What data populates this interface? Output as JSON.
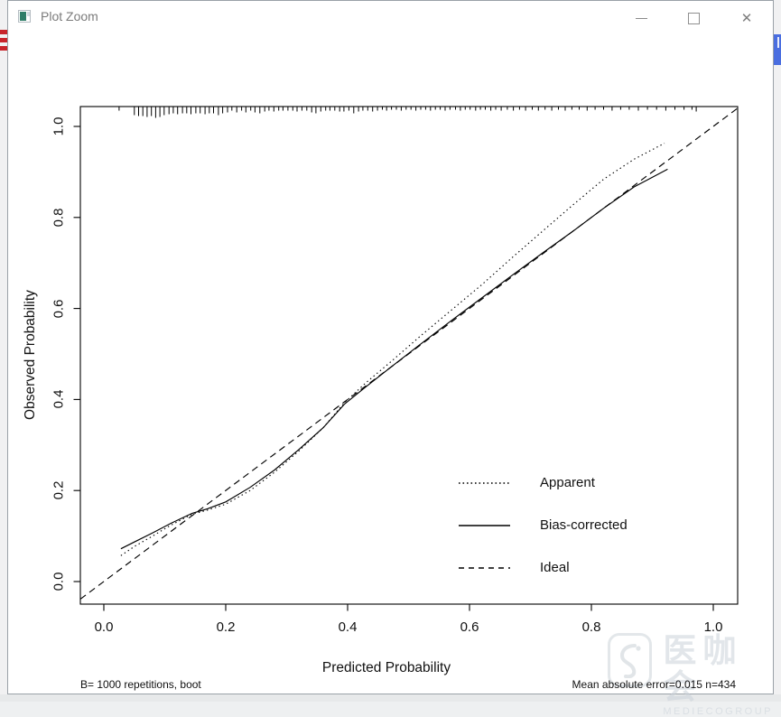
{
  "window": {
    "title": "Plot Zoom",
    "controls": [
      {
        "name": "minimize"
      },
      {
        "name": "maximize"
      },
      {
        "name": "close",
        "glyph": "✕"
      }
    ]
  },
  "chart_data": {
    "type": "line",
    "title": "",
    "xlabel": "Predicted Probability",
    "ylabel": "Observed Probability",
    "x_ticks": [
      "0.0",
      "0.2",
      "0.4",
      "0.6",
      "0.8",
      "1.0"
    ],
    "y_ticks": [
      "0.0",
      "0.2",
      "0.4",
      "0.6",
      "0.8",
      "1.0"
    ],
    "xlim": [
      -0.04,
      1.04
    ],
    "ylim": [
      -0.05,
      1.045
    ],
    "grid": false,
    "legend_position": "center-right",
    "series": [
      {
        "name": "Apparent",
        "style": "dotted",
        "points": [
          [
            0.028,
            0.057
          ],
          [
            0.05,
            0.077
          ],
          [
            0.08,
            0.1
          ],
          [
            0.11,
            0.124
          ],
          [
            0.145,
            0.148
          ],
          [
            0.17,
            0.157
          ],
          [
            0.2,
            0.17
          ],
          [
            0.24,
            0.2
          ],
          [
            0.28,
            0.24
          ],
          [
            0.32,
            0.287
          ],
          [
            0.36,
            0.338
          ],
          [
            0.395,
            0.393
          ],
          [
            0.43,
            0.437
          ],
          [
            0.47,
            0.482
          ],
          [
            0.52,
            0.54
          ],
          [
            0.57,
            0.596
          ],
          [
            0.62,
            0.652
          ],
          [
            0.67,
            0.712
          ],
          [
            0.72,
            0.77
          ],
          [
            0.77,
            0.828
          ],
          [
            0.82,
            0.884
          ],
          [
            0.87,
            0.928
          ],
          [
            0.92,
            0.963
          ]
        ]
      },
      {
        "name": "Bias-corrected",
        "style": "solid",
        "points": [
          [
            0.028,
            0.072
          ],
          [
            0.05,
            0.087
          ],
          [
            0.08,
            0.107
          ],
          [
            0.11,
            0.128
          ],
          [
            0.145,
            0.15
          ],
          [
            0.17,
            0.16
          ],
          [
            0.2,
            0.175
          ],
          [
            0.24,
            0.207
          ],
          [
            0.28,
            0.245
          ],
          [
            0.32,
            0.29
          ],
          [
            0.36,
            0.338
          ],
          [
            0.395,
            0.39
          ],
          [
            0.43,
            0.428
          ],
          [
            0.47,
            0.47
          ],
          [
            0.52,
            0.522
          ],
          [
            0.57,
            0.573
          ],
          [
            0.62,
            0.623
          ],
          [
            0.67,
            0.673
          ],
          [
            0.72,
            0.722
          ],
          [
            0.77,
            0.77
          ],
          [
            0.82,
            0.82
          ],
          [
            0.87,
            0.867
          ],
          [
            0.925,
            0.906
          ]
        ]
      },
      {
        "name": "Ideal",
        "style": "dashed",
        "points": [
          [
            -0.0385,
            -0.0385
          ],
          [
            1.04,
            1.04
          ]
        ]
      }
    ],
    "rug": [
      [
        0.025,
        4
      ],
      [
        0.05,
        9
      ],
      [
        0.057,
        10
      ],
      [
        0.064,
        10
      ],
      [
        0.071,
        11
      ],
      [
        0.078,
        10
      ],
      [
        0.085,
        12
      ],
      [
        0.092,
        11
      ],
      [
        0.099,
        9
      ],
      [
        0.107,
        8
      ],
      [
        0.114,
        7
      ],
      [
        0.121,
        8
      ],
      [
        0.129,
        7
      ],
      [
        0.136,
        7
      ],
      [
        0.143,
        8
      ],
      [
        0.151,
        7
      ],
      [
        0.158,
        7
      ],
      [
        0.166,
        8
      ],
      [
        0.173,
        7
      ],
      [
        0.18,
        7
      ],
      [
        0.188,
        9
      ],
      [
        0.195,
        7
      ],
      [
        0.203,
        6
      ],
      [
        0.21,
        4
      ],
      [
        0.218,
        6
      ],
      [
        0.226,
        4
      ],
      [
        0.233,
        6
      ],
      [
        0.241,
        4
      ],
      [
        0.248,
        6
      ],
      [
        0.256,
        7
      ],
      [
        0.264,
        5
      ],
      [
        0.271,
        4
      ],
      [
        0.279,
        5
      ],
      [
        0.287,
        4
      ],
      [
        0.294,
        4
      ],
      [
        0.302,
        4
      ],
      [
        0.31,
        4
      ],
      [
        0.317,
        5
      ],
      [
        0.325,
        4
      ],
      [
        0.333,
        4
      ],
      [
        0.341,
        6
      ],
      [
        0.348,
        7
      ],
      [
        0.356,
        5
      ],
      [
        0.364,
        4
      ],
      [
        0.371,
        4
      ],
      [
        0.379,
        4
      ],
      [
        0.387,
        5
      ],
      [
        0.394,
        5
      ],
      [
        0.402,
        4
      ],
      [
        0.41,
        7
      ],
      [
        0.418,
        5
      ],
      [
        0.425,
        4
      ],
      [
        0.433,
        4
      ],
      [
        0.441,
        5
      ],
      [
        0.449,
        4
      ],
      [
        0.457,
        3
      ],
      [
        0.464,
        4
      ],
      [
        0.472,
        3
      ],
      [
        0.48,
        3
      ],
      [
        0.488,
        4
      ],
      [
        0.496,
        3
      ],
      [
        0.504,
        3
      ],
      [
        0.512,
        4
      ],
      [
        0.52,
        3
      ],
      [
        0.528,
        3
      ],
      [
        0.536,
        4
      ],
      [
        0.544,
        3
      ],
      [
        0.552,
        3
      ],
      [
        0.56,
        4
      ],
      [
        0.568,
        3
      ],
      [
        0.577,
        3
      ],
      [
        0.585,
        4
      ],
      [
        0.593,
        3
      ],
      [
        0.601,
        3
      ],
      [
        0.61,
        4
      ],
      [
        0.618,
        3
      ],
      [
        0.626,
        3
      ],
      [
        0.635,
        4
      ],
      [
        0.643,
        3
      ],
      [
        0.652,
        4
      ],
      [
        0.662,
        3
      ],
      [
        0.672,
        4
      ],
      [
        0.682,
        3
      ],
      [
        0.692,
        4
      ],
      [
        0.703,
        3
      ],
      [
        0.713,
        4
      ],
      [
        0.724,
        3
      ],
      [
        0.735,
        4
      ],
      [
        0.746,
        3
      ],
      [
        0.757,
        4
      ],
      [
        0.768,
        3
      ],
      [
        0.78,
        3
      ],
      [
        0.793,
        4
      ],
      [
        0.806,
        3
      ],
      [
        0.82,
        3
      ],
      [
        0.834,
        4
      ],
      [
        0.848,
        3
      ],
      [
        0.862,
        3
      ],
      [
        0.877,
        4
      ],
      [
        0.892,
        3
      ],
      [
        0.907,
        3
      ],
      [
        0.922,
        4
      ],
      [
        0.937,
        3
      ],
      [
        0.952,
        3
      ],
      [
        0.965,
        3
      ],
      [
        0.972,
        5
      ]
    ],
    "footnote_left": "B= 1000 repetitions, boot",
    "footnote_right": "Mean absolute error=0.015 n=434"
  },
  "watermark": {
    "cjk": "医咖会",
    "latin": "MEDIECOGROUP"
  },
  "colors": {
    "plot_line": "#000000",
    "window_border": "#9aa1a7",
    "title_text": "#7b7b7b",
    "background_red_logo": "#c8242b",
    "background_blue_fragment": "#4a6ee0"
  }
}
